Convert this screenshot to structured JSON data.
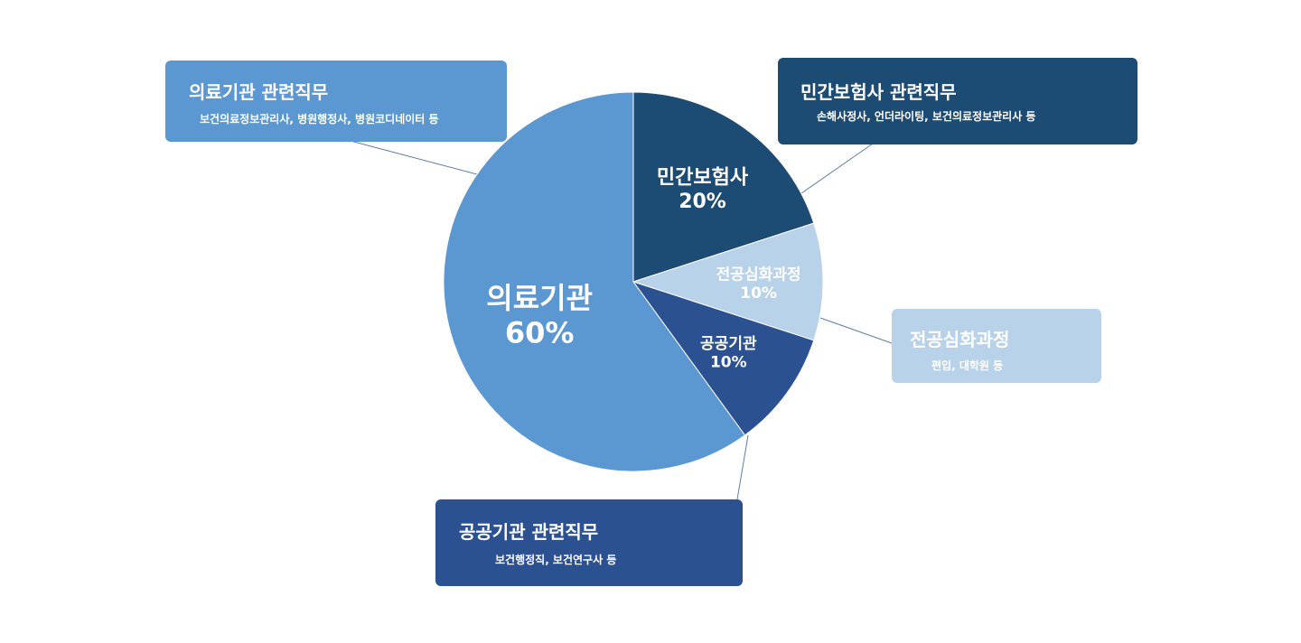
{
  "chart_data": {
    "type": "pie",
    "slices": [
      {
        "label": "민간보험사",
        "value": 20,
        "value_label": "20%",
        "color": "#1c4b74"
      },
      {
        "label": "전공심화과정",
        "value": 10,
        "value_label": "10%",
        "color": "#b8d2ea"
      },
      {
        "label": "공공기관",
        "value": 10,
        "value_label": "10%",
        "color": "#2c5190"
      },
      {
        "label": "의료기관",
        "value": 60,
        "value_label": "60%",
        "color": "#5b97d1"
      }
    ],
    "start_angle": "12 o'clock",
    "direction": "clockwise",
    "annotations": [
      {
        "id": "medical",
        "title": "의료기관 관련직무",
        "description": "보건의료정보관리사, 병원행정사, 병원코디네이터 등",
        "color": "#5b97d1"
      },
      {
        "id": "private",
        "title": "민간보험사 관련직무",
        "description": "손해사정사, 언더라이팅, 보건의료정보관리사 등",
        "color": "#1c4b74"
      },
      {
        "id": "grad",
        "title": "전공심화과정",
        "description": "편입, 대학원 등",
        "color": "#b8d2ea"
      },
      {
        "id": "public",
        "title": "공공기관 관련직무",
        "description": "보건행정직, 보건연구사 등",
        "color": "#2c5190"
      }
    ]
  }
}
